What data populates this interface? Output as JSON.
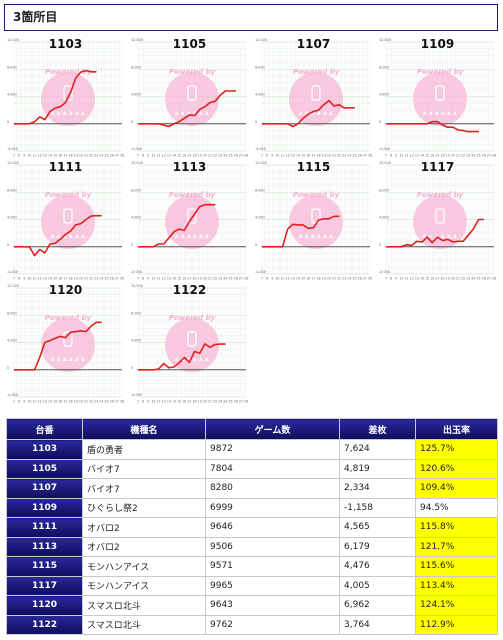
{
  "header": {
    "title": "3箇所目"
  },
  "watermark": {
    "line1": "Powered by",
    "line2": "Δ Δ Δ Δ Δ Δ"
  },
  "colors": {
    "header_bg": "#1a1a6e",
    "line": "#e02020",
    "highlight": "#ffff00",
    "negative": "#e0322c",
    "watermark": "#f7b8d8"
  },
  "chart_common": {
    "type": "line",
    "ylim": [
      -4000,
      12000
    ],
    "y_ticks": [
      "12,000",
      "8,000",
      "4,000",
      "0",
      "-4,000"
    ],
    "x_ticks": [
      "7",
      "8",
      "9",
      "10",
      "11",
      "12",
      "13",
      "14",
      "15",
      "16",
      "17",
      "18",
      "19",
      "20",
      "21",
      "22",
      "23",
      "24",
      "25",
      "26",
      "27",
      "28"
    ],
    "grid": true
  },
  "chart_data": [
    {
      "type": "line",
      "title": "1103",
      "x": [
        7,
        9,
        10,
        11,
        12,
        13,
        14,
        15,
        16,
        17,
        18,
        19,
        20,
        21,
        22,
        23,
        24,
        25,
        26,
        27,
        28
      ],
      "values": [
        0,
        0,
        0,
        300,
        1000,
        600,
        1800,
        2300,
        2500,
        3100,
        4600,
        6700,
        7600,
        7800,
        7620,
        7624,
        null,
        null,
        null,
        null,
        null
      ]
    },
    {
      "type": "line",
      "title": "1105",
      "x": [
        7,
        9,
        10,
        11,
        12,
        13,
        14,
        15,
        16,
        17,
        18,
        19,
        20,
        21,
        22,
        23,
        24,
        25,
        26,
        27,
        28
      ],
      "values": [
        0,
        0,
        0,
        0,
        -200,
        -400,
        0,
        300,
        800,
        1300,
        1200,
        2100,
        2500,
        3100,
        3300,
        4200,
        4800,
        4800,
        4819,
        null,
        null
      ]
    },
    {
      "type": "line",
      "title": "1107",
      "x": [
        7,
        9,
        10,
        11,
        12,
        13,
        14,
        15,
        16,
        17,
        18,
        19,
        20,
        21,
        22,
        23,
        24,
        25,
        26,
        27,
        28
      ],
      "values": [
        0,
        0,
        0,
        0,
        0,
        -400,
        0,
        800,
        1400,
        1800,
        2000,
        2800,
        3400,
        2600,
        2800,
        2300,
        2334,
        2334,
        null,
        null,
        null
      ]
    },
    {
      "type": "line",
      "title": "1109",
      "x": [
        7,
        9,
        10,
        11,
        12,
        13,
        14,
        15,
        16,
        17,
        18,
        19,
        20,
        21,
        22,
        23,
        24,
        25,
        26,
        27,
        28
      ],
      "values": [
        0,
        0,
        0,
        0,
        0,
        0,
        0,
        0,
        300,
        300,
        -200,
        -500,
        -500,
        -900,
        -1000,
        -1158,
        -1158,
        -1158,
        null,
        null,
        null
      ]
    },
    {
      "type": "line",
      "title": "1111",
      "x": [
        7,
        9,
        10,
        11,
        12,
        13,
        14,
        15,
        16,
        17,
        18,
        19,
        20,
        21,
        22,
        23,
        24,
        25,
        26,
        27,
        28
      ],
      "values": [
        0,
        0,
        0,
        -1300,
        -400,
        -900,
        400,
        500,
        1100,
        1800,
        2300,
        3200,
        3400,
        4000,
        4500,
        4565,
        4565,
        null,
        null,
        null,
        null
      ]
    },
    {
      "type": "line",
      "title": "1113",
      "x": [
        7,
        9,
        10,
        11,
        12,
        13,
        14,
        15,
        16,
        17,
        18,
        19,
        20,
        21,
        22,
        23,
        24,
        25,
        26,
        27,
        28
      ],
      "values": [
        0,
        0,
        0,
        400,
        400,
        1300,
        2200,
        2600,
        2400,
        3700,
        4800,
        5900,
        6179,
        6179,
        6179,
        null,
        null,
        null,
        null,
        null,
        null
      ]
    },
    {
      "type": "line",
      "title": "1115",
      "x": [
        7,
        9,
        10,
        11,
        12,
        13,
        14,
        15,
        16,
        17,
        18,
        19,
        20,
        21,
        22,
        23,
        24,
        25,
        26,
        27,
        28
      ],
      "values": [
        0,
        0,
        0,
        0,
        2600,
        3300,
        3200,
        3200,
        2700,
        2800,
        3900,
        4100,
        4100,
        4476,
        4476,
        null,
        null,
        null,
        null,
        null,
        null
      ]
    },
    {
      "type": "line",
      "title": "1117",
      "x": [
        7,
        9,
        10,
        11,
        12,
        13,
        14,
        15,
        16,
        17,
        18,
        19,
        20,
        21,
        22,
        23,
        24,
        25,
        26,
        27,
        28
      ],
      "values": [
        0,
        0,
        0,
        300,
        200,
        800,
        700,
        1400,
        600,
        1400,
        900,
        1100,
        700,
        800,
        800,
        1700,
        2600,
        4005,
        4005,
        null,
        null
      ]
    },
    {
      "type": "line",
      "title": "1120",
      "x": [
        7,
        9,
        10,
        11,
        12,
        13,
        14,
        15,
        16,
        17,
        18,
        19,
        20,
        21,
        22,
        23,
        24,
        25,
        26,
        27,
        28
      ],
      "values": [
        0,
        0,
        0,
        0,
        1800,
        4000,
        4300,
        4600,
        4900,
        4700,
        5500,
        5600,
        5700,
        5600,
        6400,
        6962,
        6962,
        null,
        null,
        null,
        null
      ]
    },
    {
      "type": "line",
      "title": "1122",
      "x": [
        7,
        9,
        10,
        11,
        12,
        13,
        14,
        15,
        16,
        17,
        18,
        19,
        20,
        21,
        22,
        23,
        24,
        25,
        26,
        27,
        28
      ],
      "values": [
        0,
        0,
        0,
        100,
        900,
        300,
        400,
        1000,
        1800,
        1100,
        2700,
        2400,
        3800,
        3300,
        3700,
        3764,
        3764,
        null,
        null,
        null,
        null
      ]
    }
  ],
  "table": {
    "headers": [
      "台番",
      "機種名",
      "ゲーム数",
      "差枚",
      "出玉率"
    ],
    "rows": [
      {
        "unit": "1103",
        "model": "盾の勇者",
        "games": "9872",
        "diff": "7,624",
        "rate": "125.7%",
        "neg": false,
        "hi": true
      },
      {
        "unit": "1105",
        "model": "バイオ7",
        "games": "7804",
        "diff": "4,819",
        "rate": "120.6%",
        "neg": false,
        "hi": true
      },
      {
        "unit": "1107",
        "model": "バイオ7",
        "games": "8280",
        "diff": "2,334",
        "rate": "109.4%",
        "neg": false,
        "hi": true
      },
      {
        "unit": "1109",
        "model": "ひぐらし祭2",
        "games": "6999",
        "diff": "-1,158",
        "rate": "94.5%",
        "neg": true,
        "hi": false
      },
      {
        "unit": "1111",
        "model": "オバロ2",
        "games": "9646",
        "diff": "4,565",
        "rate": "115.8%",
        "neg": false,
        "hi": true
      },
      {
        "unit": "1113",
        "model": "オバロ2",
        "games": "9506",
        "diff": "6,179",
        "rate": "121.7%",
        "neg": false,
        "hi": true
      },
      {
        "unit": "1115",
        "model": "モンハンアイス",
        "games": "9571",
        "diff": "4,476",
        "rate": "115.6%",
        "neg": false,
        "hi": true
      },
      {
        "unit": "1117",
        "model": "モンハンアイス",
        "games": "9965",
        "diff": "4,005",
        "rate": "113.4%",
        "neg": false,
        "hi": true
      },
      {
        "unit": "1120",
        "model": "スマスロ北斗",
        "games": "9643",
        "diff": "6,962",
        "rate": "124.1%",
        "neg": false,
        "hi": true
      },
      {
        "unit": "1122",
        "model": "スマスロ北斗",
        "games": "9762",
        "diff": "3,764",
        "rate": "112.9%",
        "neg": false,
        "hi": true
      }
    ]
  }
}
